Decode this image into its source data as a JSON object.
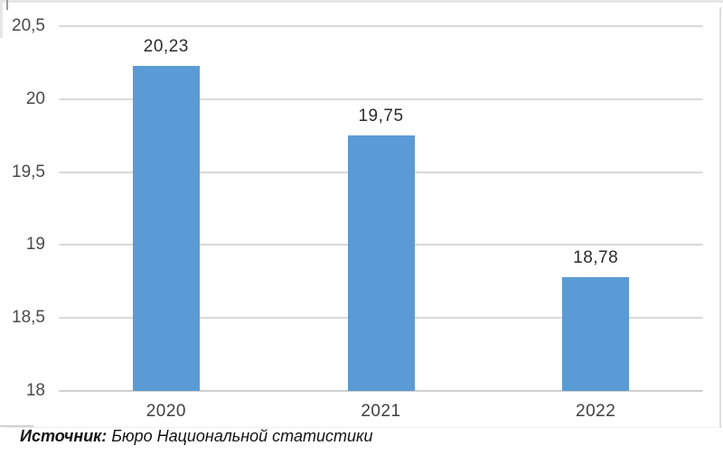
{
  "chart_data": {
    "type": "bar",
    "categories": [
      "2020",
      "2021",
      "2022"
    ],
    "values": [
      20.23,
      19.75,
      18.78
    ],
    "value_labels": [
      "20,23",
      "19,75",
      "18,78"
    ],
    "ylim": [
      18,
      20.5
    ],
    "ytick_step": 0.5,
    "ytick_labels": [
      "18",
      "18,5",
      "19",
      "19,5",
      "20",
      "20,5"
    ],
    "xlabel": "",
    "ylabel": "",
    "grid": true,
    "legend": "none",
    "bar_color": "#5B9BD5",
    "gridline_color": "#D9D9D9",
    "baseline_color": "#CFCFCF",
    "value_label_color": "#2C2C2C",
    "tick_label_color": "#4A4A4A"
  },
  "source_note": {
    "prefix": "Источник:",
    "text": " Бюро Национальной статистики"
  }
}
